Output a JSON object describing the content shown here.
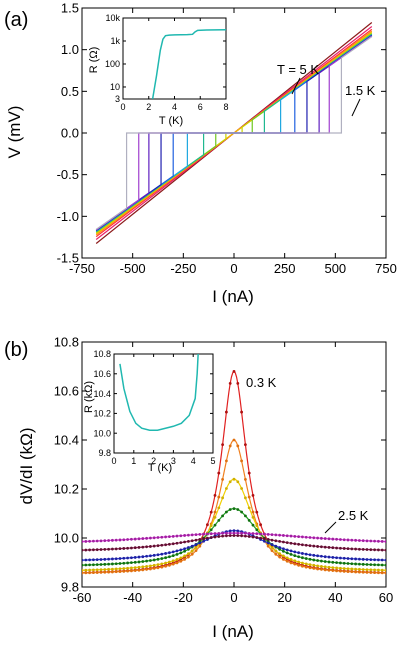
{
  "panels": {
    "a": {
      "label": "(a)"
    },
    "b": {
      "label": "(b)"
    }
  },
  "chart_data": [
    {
      "panel": "(a)",
      "type": "line",
      "xlabel": "I  (nA)",
      "ylabel": "V  (mV)",
      "xlim": [
        -750,
        750
      ],
      "ylim": [
        -1.5,
        1.5
      ],
      "xticks": [
        -750,
        -500,
        -250,
        0,
        250,
        500,
        750
      ],
      "yticks": [
        -1.5,
        -1.0,
        -0.5,
        0.0,
        0.5,
        1.0,
        1.5
      ],
      "xtick_labels": [
        "-750",
        "-500",
        "-250",
        "0",
        "250",
        "500",
        "750"
      ],
      "ytick_labels": [
        "-1.5",
        "-1.0",
        "-0.5",
        "0.0",
        "0.5",
        "1.0",
        "1.5"
      ],
      "annotations": [
        "T = 5 K",
        "1.5 K"
      ],
      "series_colors": [
        "#8c1a1a",
        "#e8206b",
        "#ff3030",
        "#ff8020",
        "#f0c000",
        "#c8d400",
        "#70c820",
        "#20b890",
        "#20a8e0",
        "#2060e0",
        "#2020b0",
        "#6020c0",
        "#a040d0",
        "#b0b0c0"
      ],
      "series": [
        {
          "slope": 1.95,
          "critical_current": 0
        },
        {
          "slope": 1.88,
          "critical_current": 0
        },
        {
          "slope": 1.83,
          "critical_current": 0
        },
        {
          "slope": 1.8,
          "critical_current": 0
        },
        {
          "slope": 1.78,
          "critical_current": 0
        },
        {
          "slope": 1.76,
          "critical_current": 40
        },
        {
          "slope": 1.75,
          "critical_current": 90
        },
        {
          "slope": 1.74,
          "critical_current": 150
        },
        {
          "slope": 1.73,
          "critical_current": 230
        },
        {
          "slope": 1.72,
          "critical_current": 300
        },
        {
          "slope": 1.72,
          "critical_current": 360
        },
        {
          "slope": 1.71,
          "critical_current": 420
        },
        {
          "slope": 1.71,
          "critical_current": 470
        },
        {
          "slope": 1.7,
          "critical_current": 530
        }
      ],
      "inset": {
        "type": "line",
        "xlabel": "T  (K)",
        "ylabel": "R  (Ω)",
        "xlim": [
          0,
          8
        ],
        "ylim": [
          3,
          10000
        ],
        "yscale": "log",
        "xticks": [
          0,
          2,
          4,
          6,
          8
        ],
        "xtick_labels": [
          "0",
          "2",
          "4",
          "6",
          "8"
        ],
        "yticks": [
          3,
          10,
          100,
          1000,
          10000
        ],
        "ytick_labels": [
          "3",
          "10",
          "100",
          "1k",
          "10k"
        ],
        "color": "#20b8b0",
        "x": [
          2.3,
          2.6,
          2.9,
          3.1,
          3.3,
          3.6,
          4.0,
          4.5,
          5.0,
          5.4,
          5.6,
          5.8,
          6.5,
          7.2,
          8.0
        ],
        "y": [
          3,
          30,
          400,
          1200,
          1700,
          1800,
          1850,
          1870,
          1900,
          1950,
          2500,
          2900,
          3000,
          3050,
          3100
        ]
      }
    },
    {
      "panel": "(b)",
      "type": "line",
      "xlabel": "I  (nA)",
      "ylabel": "dV/dI  (kΩ)",
      "xlim": [
        -60,
        60
      ],
      "ylim": [
        9.8,
        10.8
      ],
      "xticks": [
        -60,
        -40,
        -20,
        0,
        20,
        40,
        60
      ],
      "yticks": [
        9.8,
        10.0,
        10.2,
        10.4,
        10.6,
        10.8
      ],
      "xtick_labels": [
        "-60",
        "-40",
        "-20",
        "0",
        "20",
        "40",
        "60"
      ],
      "ytick_labels": [
        "9.8",
        "10.0",
        "10.2",
        "10.4",
        "10.6",
        "10.8"
      ],
      "annotations": [
        "0.3 K",
        "2.5 K"
      ],
      "series": [
        {
          "color": "#e02020",
          "dot_color": "#b01010",
          "baseline": 9.85,
          "peak": 10.68,
          "width": 6
        },
        {
          "color": "#f08020",
          "dot_color": "#e07010",
          "baseline": 9.85,
          "peak": 10.4,
          "width": 7
        },
        {
          "color": "#f0d000",
          "dot_color": "#d0b000",
          "baseline": 9.86,
          "peak": 10.24,
          "width": 9
        },
        {
          "color": "#20a020",
          "dot_color": "#107010",
          "baseline": 9.88,
          "peak": 10.12,
          "width": 12
        },
        {
          "color": "#2040e0",
          "dot_color": "#2020a0",
          "baseline": 9.9,
          "peak": 10.03,
          "width": 17
        },
        {
          "color": "#a02060",
          "dot_color": "#601030",
          "baseline": 9.94,
          "peak": 10.01,
          "width": 25
        },
        {
          "color": "#e040e0",
          "dot_color": "#a020a0",
          "baseline": 9.97,
          "peak": 10.02,
          "width": 40
        }
      ],
      "inset": {
        "type": "line",
        "xlabel": "T  (K)",
        "ylabel": "R  (kΩ)",
        "xlim": [
          0,
          5
        ],
        "ylim": [
          9.8,
          10.8
        ],
        "xticks": [
          0,
          1,
          2,
          3,
          4,
          5
        ],
        "xtick_labels": [
          "0",
          "1",
          "2",
          "3",
          "4",
          "5"
        ],
        "yticks": [
          9.8,
          10.0,
          10.2,
          10.4,
          10.6,
          10.8
        ],
        "ytick_labels": [
          "9.8",
          "10.0",
          "10.2",
          "10.4",
          "10.6",
          "10.8"
        ],
        "color": "#20b8b0",
        "x": [
          0.3,
          0.5,
          0.8,
          1.1,
          1.4,
          1.8,
          2.2,
          2.6,
          3.0,
          3.4,
          3.8,
          4.1,
          4.2,
          4.25
        ],
        "y": [
          10.7,
          10.45,
          10.22,
          10.1,
          10.05,
          10.03,
          10.03,
          10.05,
          10.07,
          10.1,
          10.18,
          10.35,
          10.6,
          10.8
        ]
      }
    }
  ]
}
